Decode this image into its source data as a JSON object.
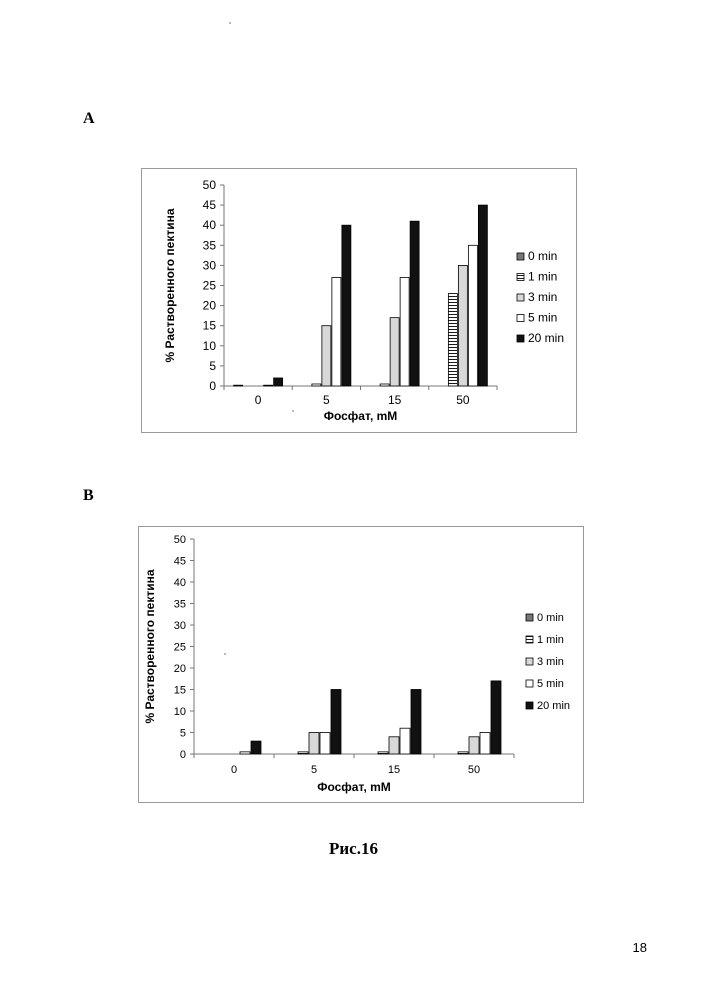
{
  "page": {
    "caption": "Рис.16",
    "page_number": "18"
  },
  "panels": [
    {
      "label": "A"
    },
    {
      "label": "B"
    }
  ],
  "chart_data": [
    {
      "type": "bar",
      "panel": "A",
      "xlabel": "Фосфат, mM",
      "ylabel": "% Растворенного пектина",
      "ylim": [
        0,
        50
      ],
      "yticks": [
        0,
        5,
        10,
        15,
        20,
        25,
        30,
        35,
        40,
        45,
        50
      ],
      "categories": [
        "0",
        "5",
        "15",
        "50"
      ],
      "legend_position": "right",
      "series": [
        {
          "name": "0 min",
          "values": [
            0.2,
            0,
            0,
            0
          ],
          "fill": "#777777",
          "pattern": "solid"
        },
        {
          "name": "1 min",
          "values": [
            0,
            0.5,
            0.5,
            23
          ],
          "fill": "#ffffff",
          "pattern": "hstripes"
        },
        {
          "name": "3 min",
          "values": [
            0,
            15,
            17,
            30
          ],
          "fill": "#d8d8d8",
          "pattern": "solid"
        },
        {
          "name": "5 min",
          "values": [
            0.2,
            27,
            27,
            35
          ],
          "fill": "#ffffff",
          "pattern": "solid"
        },
        {
          "name": "20 min",
          "values": [
            2,
            40,
            41,
            45
          ],
          "fill": "#111111",
          "pattern": "solid"
        }
      ]
    },
    {
      "type": "bar",
      "panel": "B",
      "xlabel": "Фосфат, mM",
      "ylabel": "% Растворенного пектина",
      "ylim": [
        0,
        50
      ],
      "yticks": [
        0,
        5,
        10,
        15,
        20,
        25,
        30,
        35,
        40,
        45,
        50
      ],
      "categories": [
        "0",
        "5",
        "15",
        "50"
      ],
      "legend_position": "right",
      "series": [
        {
          "name": "0 min",
          "values": [
            0,
            0,
            0,
            0
          ],
          "fill": "#777777",
          "pattern": "solid"
        },
        {
          "name": "1 min",
          "values": [
            0,
            0.5,
            0.5,
            0.5
          ],
          "fill": "#ffffff",
          "pattern": "hstripes"
        },
        {
          "name": "3 min",
          "values": [
            0,
            5,
            4,
            4
          ],
          "fill": "#d8d8d8",
          "pattern": "solid"
        },
        {
          "name": "5 min",
          "values": [
            0.5,
            5,
            6,
            5
          ],
          "fill": "#ffffff",
          "pattern": "solid"
        },
        {
          "name": "20 min",
          "values": [
            3,
            15,
            15,
            17
          ],
          "fill": "#111111",
          "pattern": "solid"
        }
      ]
    }
  ]
}
